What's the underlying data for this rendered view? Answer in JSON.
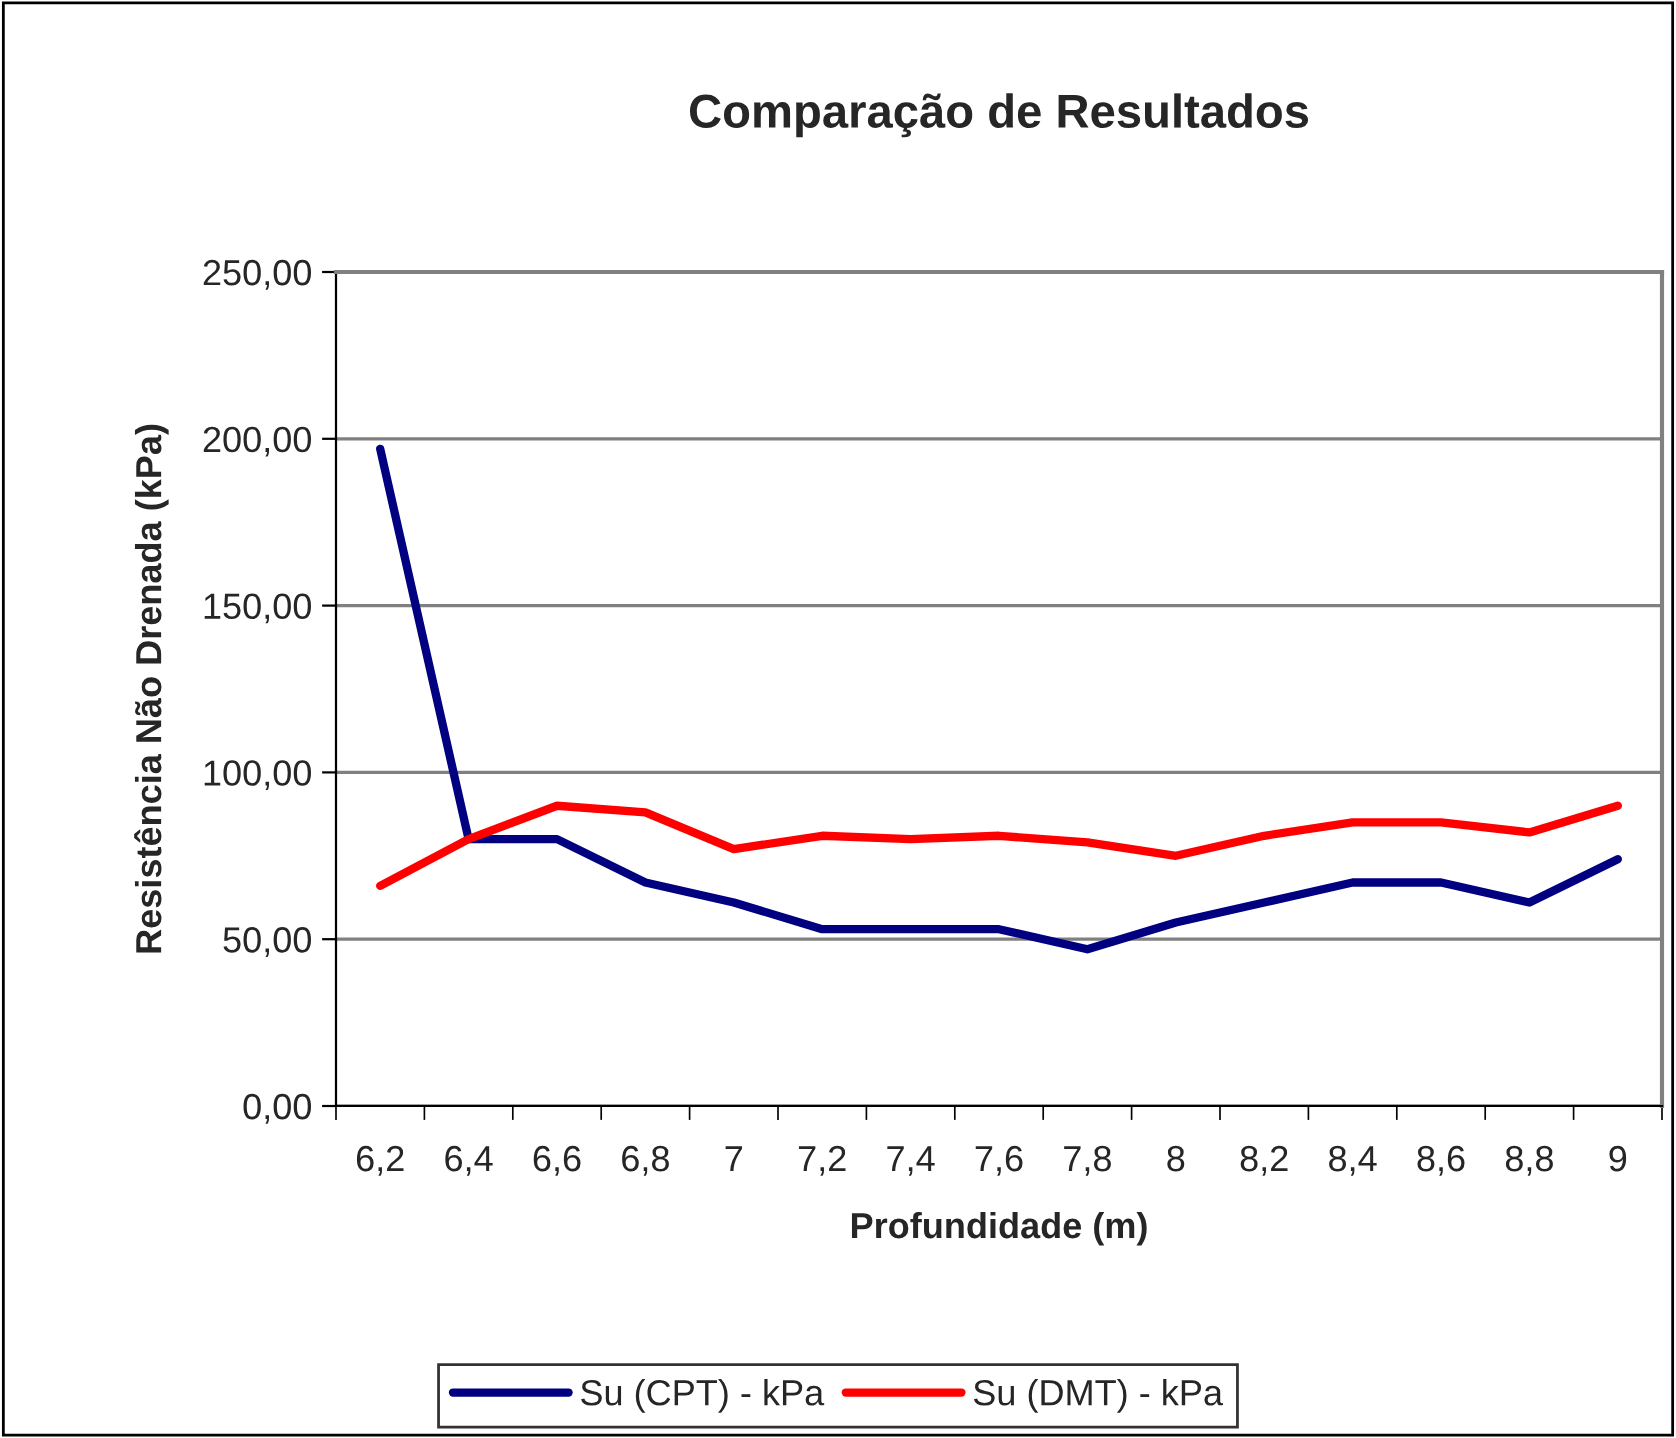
{
  "chart_data": {
    "type": "line",
    "title": "Comparação de Resultados",
    "xlabel": "Profundidade (m)",
    "ylabel": "Resistência Não Drenada (kPa)",
    "categories": [
      "6,2",
      "6,4",
      "6,6",
      "6,8",
      "7",
      "7,2",
      "7,4",
      "7,6",
      "7,8",
      "8",
      "8,2",
      "8,4",
      "8,6",
      "8,8",
      "9"
    ],
    "series": [
      {
        "name": "Su (CPT) - kPa",
        "color": "#000080",
        "values": [
          197,
          80,
          80,
          67,
          61,
          53,
          53,
          53,
          47,
          55,
          61,
          67,
          67,
          61,
          74
        ]
      },
      {
        "name": "Su (DMT) - kPa",
        "color": "#ff0000",
        "values": [
          66,
          80,
          90,
          88,
          77,
          81,
          80,
          81,
          79,
          75,
          81,
          85,
          85,
          82,
          90
        ]
      }
    ],
    "ylim": [
      0,
      250
    ],
    "yticks": [
      {
        "value": 0,
        "label": "0,00"
      },
      {
        "value": 50,
        "label": "50,00"
      },
      {
        "value": 100,
        "label": "100,00"
      },
      {
        "value": 150,
        "label": "150,00"
      },
      {
        "value": 200,
        "label": "200,00"
      },
      {
        "value": 250,
        "label": "250,00"
      }
    ],
    "grid": "y",
    "legend": "bottom",
    "marker": "none",
    "line_style": "solid"
  }
}
